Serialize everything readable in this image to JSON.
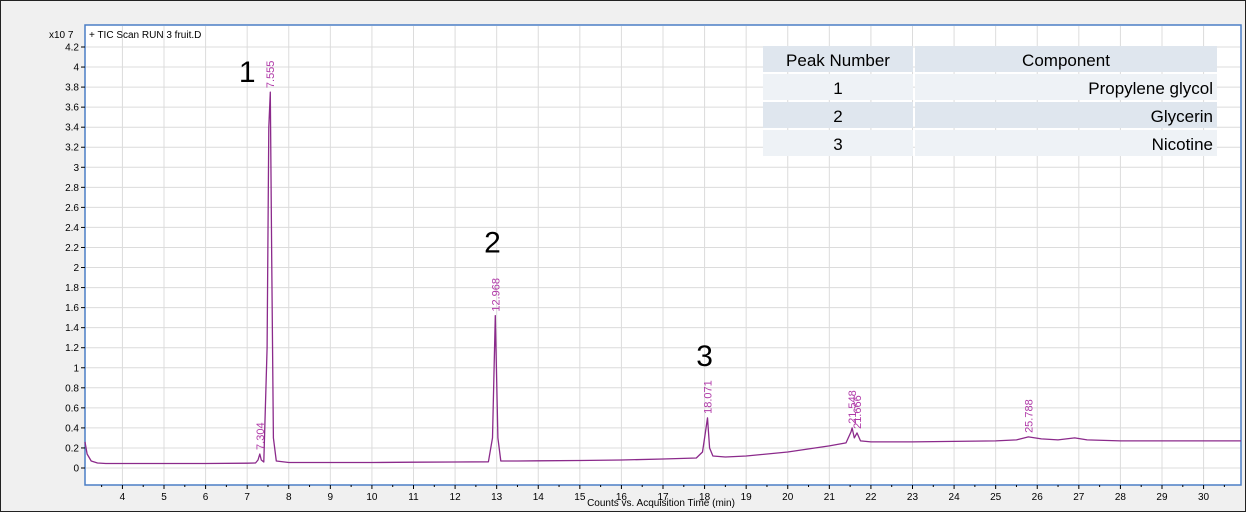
{
  "chart_data": {
    "type": "line",
    "title": "+ TIC Scan RUN 3 fruit.D",
    "xlabel": "Counts vs. Acquisition Time (min)",
    "ylabel": "",
    "y_multiplier": "x10 7",
    "xlim": [
      3.1,
      30.9
    ],
    "ylim": [
      0,
      4.2
    ],
    "x_ticks": [
      4,
      5,
      6,
      7,
      8,
      9,
      10,
      11,
      12,
      13,
      14,
      15,
      16,
      17,
      18,
      19,
      20,
      21,
      22,
      23,
      24,
      25,
      26,
      27,
      28,
      29,
      30
    ],
    "y_ticks": [
      "0",
      "0.2",
      "0.4",
      "0.6",
      "0.8",
      "1",
      "1.2",
      "1.4",
      "1.6",
      "1.8",
      "2",
      "2.2",
      "2.4",
      "2.6",
      "2.8",
      "3",
      "3.2",
      "3.4",
      "3.6",
      "3.8",
      "4",
      "4.2"
    ],
    "line_color": "#8b2a8b",
    "grid": true,
    "series": [
      {
        "x": [
          3.1,
          3.15,
          3.25,
          3.4,
          3.6,
          4,
          5,
          6,
          7,
          7.2,
          7.26,
          7.304,
          7.34,
          7.4,
          7.48,
          7.52,
          7.555,
          7.59,
          7.63,
          7.7,
          8,
          9,
          10,
          11,
          12,
          12.8,
          12.9,
          12.968,
          13.03,
          13.1,
          13.5,
          14,
          15,
          16,
          17,
          17.8,
          17.95,
          18.0,
          18.071,
          18.12,
          18.2,
          18.5,
          19,
          20,
          21,
          21.4,
          21.52,
          21.548,
          21.6,
          21.666,
          21.75,
          22,
          23,
          24,
          25,
          25.5,
          25.788,
          26.1,
          26.5,
          26.9,
          27.2,
          28,
          29,
          30,
          30.9
        ],
        "y": [
          0.26,
          0.14,
          0.07,
          0.05,
          0.045,
          0.045,
          0.045,
          0.045,
          0.048,
          0.05,
          0.08,
          0.14,
          0.08,
          0.06,
          1.2,
          3.4,
          3.75,
          2.1,
          0.3,
          0.07,
          0.055,
          0.055,
          0.055,
          0.058,
          0.06,
          0.062,
          0.3,
          1.52,
          0.3,
          0.07,
          0.07,
          0.072,
          0.075,
          0.08,
          0.09,
          0.1,
          0.16,
          0.3,
          0.5,
          0.2,
          0.12,
          0.11,
          0.12,
          0.16,
          0.22,
          0.25,
          0.36,
          0.4,
          0.3,
          0.35,
          0.27,
          0.26,
          0.26,
          0.265,
          0.27,
          0.28,
          0.31,
          0.29,
          0.28,
          0.3,
          0.28,
          0.27,
          0.27,
          0.27,
          0.27
        ]
      }
    ],
    "peak_labels": [
      {
        "x": 7.304,
        "y": 0.14,
        "text": "7.304"
      },
      {
        "x": 7.555,
        "y": 3.75,
        "text": "7.555"
      },
      {
        "x": 12.968,
        "y": 1.52,
        "text": "12.968"
      },
      {
        "x": 18.071,
        "y": 0.5,
        "text": "18.071"
      },
      {
        "x": 21.548,
        "y": 0.4,
        "text": "21.548"
      },
      {
        "x": 21.666,
        "y": 0.35,
        "text": "21.666"
      },
      {
        "x": 25.788,
        "y": 0.31,
        "text": "25.788"
      }
    ],
    "peak_numbers": [
      {
        "x": 7.0,
        "y": 3.85,
        "text": "1"
      },
      {
        "x": 12.9,
        "y": 2.15,
        "text": "2"
      },
      {
        "x": 18.0,
        "y": 1.02,
        "text": "3"
      }
    ]
  },
  "legend_table": {
    "headers": [
      "Peak Number",
      "Component"
    ],
    "rows": [
      [
        "1",
        "Propylene glycol"
      ],
      [
        "2",
        "Glycerin"
      ],
      [
        "3",
        "Nicotine"
      ]
    ]
  }
}
